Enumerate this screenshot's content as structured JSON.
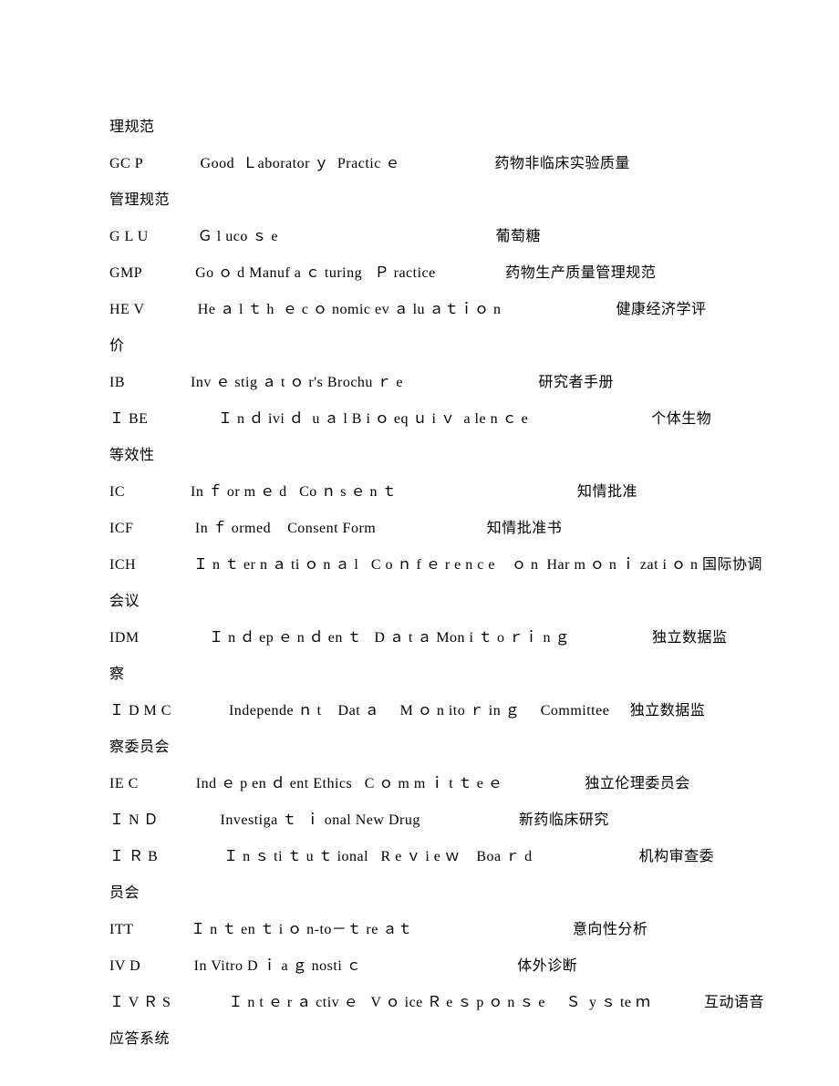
{
  "doc": {
    "font_family": "SimSun",
    "font_size_pt": 12,
    "text_color": "#000000",
    "background_color": "#ffffff",
    "line_height": 2.5,
    "lines": [
      "理规范",
      "GC P              Good  Ｌaborator ｙ  Practic ｅ                       药物非临床实验质量",
      "管理规范",
      "G L U            Ｇ l uco ｓ e                                                     葡萄糖",
      "GMP             Go ｏ d Manuf a ｃ turing   Ｐ ractice                 药物生产质量管理规范",
      "HE V             He ａ l ｔ h  ｅ c ｏ nomic ev ａ lu ａｔｉｏ n                            健康经济学评",
      "价",
      "IB                Inv ｅ stig ａ t ｏ r's Brochu ｒ e                                 研究者手册",
      "Ｉ BE                 Ｉ n ｄ ivi ｄ  u ａ l B i ｏ eq ｕ i ｖ  a le n ｃ e                              个体生物",
      "等效性",
      "IC                In ｆ or m ｅ d   Co ｎ s ｅ n ｔ                                            知情批准",
      "ICF               In ｆ ormed    Consent Form                           知情批准书",
      "ICH              Ｉ n ｔ er n ａ ti ｏ n ａ l   C o ｎ f ｅ r e n c e    ｏ n  Har m ｏ n ｉ zat i ｏ n 国际协调",
      "会议",
      "IDM                 Ｉ n ｄ ep ｅ n ｄ en ｔ   D ａ t ａ Mon i ｔ o ｒｉ n ｇ                    独立数据监",
      "察",
      "Ｉ D M C              Independe ｎ t    Dat ａ     M ｏ n ito ｒ in ｇ     Committee     独立数据监",
      "察委员会",
      "IE C              Ind ｅ p en ｄ ent Ethics   C ｏ m m ｉ t ｔ e ｅ                    独立伦理委员会",
      "Ｉ N Ｄ               Investiga ｔ  ｉ onal New Drug                        新药临床研究",
      "Ｉ Ｒ B                Ｉ n ｓ ti ｔ u ｔ ional   R e ｖ i e ｗ    Boa ｒ d                          机构审查委",
      "员会",
      "ITT              Ｉ n ｔ en ｔ i ｏ n-to－ｔ re ａｔ                                       意向性分析",
      "IV D             In Vitro D ｉ a ｇ nosti ｃ                                      体外诊断",
      "Ｉ V Ｒ S              Ｉ n t ｅ r ａ ctiv ｅ   V ｏ ice Ｒ e ｓ p ｏ n ｓ e     Ｓ  y ｓ te ｍ             互动语音",
      "应答系统"
    ]
  }
}
